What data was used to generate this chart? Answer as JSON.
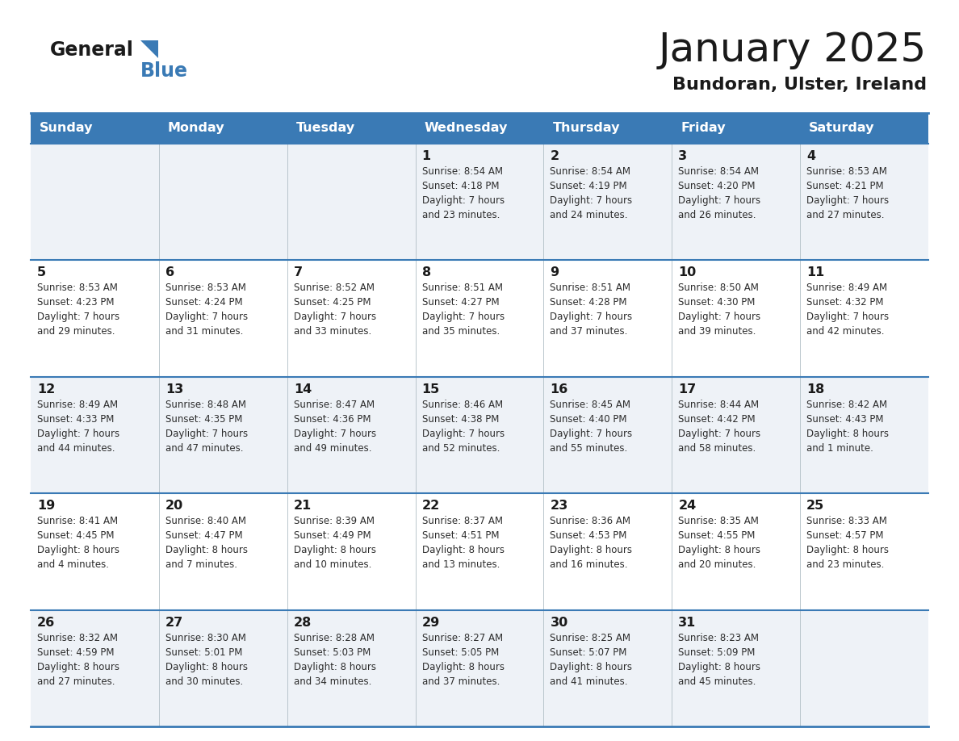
{
  "title": "January 2025",
  "subtitle": "Bundoran, Ulster, Ireland",
  "title_color": "#1a1a1a",
  "subtitle_color": "#1a1a1a",
  "header_bg_color": "#3a7ab5",
  "header_text_color": "#ffffff",
  "row_bg_light": "#eef2f7",
  "row_bg_white": "#ffffff",
  "separator_color": "#3a7ab5",
  "grid_color": "#b0bec5",
  "day_names": [
    "Sunday",
    "Monday",
    "Tuesday",
    "Wednesday",
    "Thursday",
    "Friday",
    "Saturday"
  ],
  "cell_text_color": "#2c2c2c",
  "day_number_color": "#1a1a1a",
  "logo_text1": "General",
  "logo_text2": "Blue",
  "logo_color1": "#1a1a1a",
  "logo_color2": "#3a7ab5",
  "logo_triangle_color": "#3a7ab5",
  "calendar_data": [
    [
      {
        "day": "",
        "info": ""
      },
      {
        "day": "",
        "info": ""
      },
      {
        "day": "",
        "info": ""
      },
      {
        "day": "1",
        "info": "Sunrise: 8:54 AM\nSunset: 4:18 PM\nDaylight: 7 hours\nand 23 minutes."
      },
      {
        "day": "2",
        "info": "Sunrise: 8:54 AM\nSunset: 4:19 PM\nDaylight: 7 hours\nand 24 minutes."
      },
      {
        "day": "3",
        "info": "Sunrise: 8:54 AM\nSunset: 4:20 PM\nDaylight: 7 hours\nand 26 minutes."
      },
      {
        "day": "4",
        "info": "Sunrise: 8:53 AM\nSunset: 4:21 PM\nDaylight: 7 hours\nand 27 minutes."
      }
    ],
    [
      {
        "day": "5",
        "info": "Sunrise: 8:53 AM\nSunset: 4:23 PM\nDaylight: 7 hours\nand 29 minutes."
      },
      {
        "day": "6",
        "info": "Sunrise: 8:53 AM\nSunset: 4:24 PM\nDaylight: 7 hours\nand 31 minutes."
      },
      {
        "day": "7",
        "info": "Sunrise: 8:52 AM\nSunset: 4:25 PM\nDaylight: 7 hours\nand 33 minutes."
      },
      {
        "day": "8",
        "info": "Sunrise: 8:51 AM\nSunset: 4:27 PM\nDaylight: 7 hours\nand 35 minutes."
      },
      {
        "day": "9",
        "info": "Sunrise: 8:51 AM\nSunset: 4:28 PM\nDaylight: 7 hours\nand 37 minutes."
      },
      {
        "day": "10",
        "info": "Sunrise: 8:50 AM\nSunset: 4:30 PM\nDaylight: 7 hours\nand 39 minutes."
      },
      {
        "day": "11",
        "info": "Sunrise: 8:49 AM\nSunset: 4:32 PM\nDaylight: 7 hours\nand 42 minutes."
      }
    ],
    [
      {
        "day": "12",
        "info": "Sunrise: 8:49 AM\nSunset: 4:33 PM\nDaylight: 7 hours\nand 44 minutes."
      },
      {
        "day": "13",
        "info": "Sunrise: 8:48 AM\nSunset: 4:35 PM\nDaylight: 7 hours\nand 47 minutes."
      },
      {
        "day": "14",
        "info": "Sunrise: 8:47 AM\nSunset: 4:36 PM\nDaylight: 7 hours\nand 49 minutes."
      },
      {
        "day": "15",
        "info": "Sunrise: 8:46 AM\nSunset: 4:38 PM\nDaylight: 7 hours\nand 52 minutes."
      },
      {
        "day": "16",
        "info": "Sunrise: 8:45 AM\nSunset: 4:40 PM\nDaylight: 7 hours\nand 55 minutes."
      },
      {
        "day": "17",
        "info": "Sunrise: 8:44 AM\nSunset: 4:42 PM\nDaylight: 7 hours\nand 58 minutes."
      },
      {
        "day": "18",
        "info": "Sunrise: 8:42 AM\nSunset: 4:43 PM\nDaylight: 8 hours\nand 1 minute."
      }
    ],
    [
      {
        "day": "19",
        "info": "Sunrise: 8:41 AM\nSunset: 4:45 PM\nDaylight: 8 hours\nand 4 minutes."
      },
      {
        "day": "20",
        "info": "Sunrise: 8:40 AM\nSunset: 4:47 PM\nDaylight: 8 hours\nand 7 minutes."
      },
      {
        "day": "21",
        "info": "Sunrise: 8:39 AM\nSunset: 4:49 PM\nDaylight: 8 hours\nand 10 minutes."
      },
      {
        "day": "22",
        "info": "Sunrise: 8:37 AM\nSunset: 4:51 PM\nDaylight: 8 hours\nand 13 minutes."
      },
      {
        "day": "23",
        "info": "Sunrise: 8:36 AM\nSunset: 4:53 PM\nDaylight: 8 hours\nand 16 minutes."
      },
      {
        "day": "24",
        "info": "Sunrise: 8:35 AM\nSunset: 4:55 PM\nDaylight: 8 hours\nand 20 minutes."
      },
      {
        "day": "25",
        "info": "Sunrise: 8:33 AM\nSunset: 4:57 PM\nDaylight: 8 hours\nand 23 minutes."
      }
    ],
    [
      {
        "day": "26",
        "info": "Sunrise: 8:32 AM\nSunset: 4:59 PM\nDaylight: 8 hours\nand 27 minutes."
      },
      {
        "day": "27",
        "info": "Sunrise: 8:30 AM\nSunset: 5:01 PM\nDaylight: 8 hours\nand 30 minutes."
      },
      {
        "day": "28",
        "info": "Sunrise: 8:28 AM\nSunset: 5:03 PM\nDaylight: 8 hours\nand 34 minutes."
      },
      {
        "day": "29",
        "info": "Sunrise: 8:27 AM\nSunset: 5:05 PM\nDaylight: 8 hours\nand 37 minutes."
      },
      {
        "day": "30",
        "info": "Sunrise: 8:25 AM\nSunset: 5:07 PM\nDaylight: 8 hours\nand 41 minutes."
      },
      {
        "day": "31",
        "info": "Sunrise: 8:23 AM\nSunset: 5:09 PM\nDaylight: 8 hours\nand 45 minutes."
      },
      {
        "day": "",
        "info": ""
      }
    ]
  ]
}
